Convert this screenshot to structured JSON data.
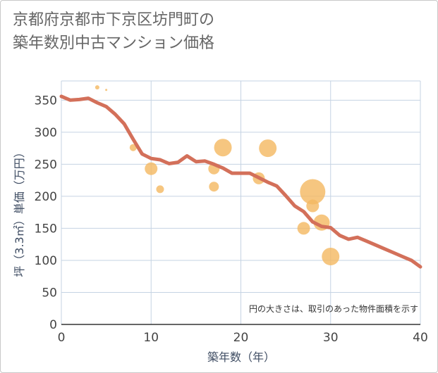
{
  "title_line1": "京都府京都市下京区坊門町の",
  "title_line2": "築年数別中古マンション価格",
  "chart_data": {
    "type": "scatter+line",
    "xlabel": "築年数（年）",
    "ylabel": "坪（3.3㎡）単価（万円）",
    "xlim": [
      0,
      40
    ],
    "ylim": [
      0,
      380
    ],
    "xticks": [
      "0",
      "10",
      "20",
      "30",
      "40"
    ],
    "xtick_values": [
      0,
      10,
      20,
      30,
      40
    ],
    "yticks": [
      "0",
      "50",
      "100",
      "150",
      "200",
      "250",
      "300",
      "350"
    ],
    "ytick_values": [
      0,
      50,
      100,
      150,
      200,
      250,
      300,
      350
    ],
    "grid": true,
    "note": "円の大きさは、取引のあった物件面積を示す",
    "line_color": "#d3705a",
    "bubble_color": "#f4b860",
    "line": {
      "x": [
        0,
        1,
        2,
        3,
        4,
        5,
        6,
        7,
        8,
        9,
        10,
        11,
        12,
        13,
        14,
        15,
        16,
        17,
        18,
        19,
        20,
        21,
        22,
        23,
        24,
        25,
        26,
        27,
        28,
        29,
        30,
        31,
        32,
        33,
        34,
        35,
        36,
        37,
        38,
        39,
        40
      ],
      "y": [
        356,
        350,
        351,
        353,
        346,
        340,
        328,
        313,
        289,
        266,
        259,
        257,
        251,
        253,
        263,
        254,
        255,
        250,
        244,
        236,
        236,
        236,
        229,
        222,
        216,
        201,
        185,
        176,
        160,
        153,
        151,
        139,
        133,
        136,
        130,
        124,
        118,
        112,
        106,
        100,
        90
      ]
    },
    "points": [
      {
        "x": 4,
        "y": 370,
        "size": 3
      },
      {
        "x": 5,
        "y": 366,
        "size": 1.5
      },
      {
        "x": 8,
        "y": 276,
        "size": 5
      },
      {
        "x": 10,
        "y": 243,
        "size": 9
      },
      {
        "x": 11,
        "y": 211,
        "size": 5.5
      },
      {
        "x": 17,
        "y": 243,
        "size": 8
      },
      {
        "x": 17,
        "y": 215,
        "size": 7
      },
      {
        "x": 18,
        "y": 276,
        "size": 12.5
      },
      {
        "x": 22,
        "y": 228,
        "size": 8.5
      },
      {
        "x": 23,
        "y": 275,
        "size": 12.5
      },
      {
        "x": 27,
        "y": 150,
        "size": 9
      },
      {
        "x": 28,
        "y": 207,
        "size": 18
      },
      {
        "x": 28,
        "y": 185,
        "size": 9
      },
      {
        "x": 29,
        "y": 159,
        "size": 11.5
      },
      {
        "x": 30,
        "y": 106,
        "size": 12.5
      }
    ]
  }
}
